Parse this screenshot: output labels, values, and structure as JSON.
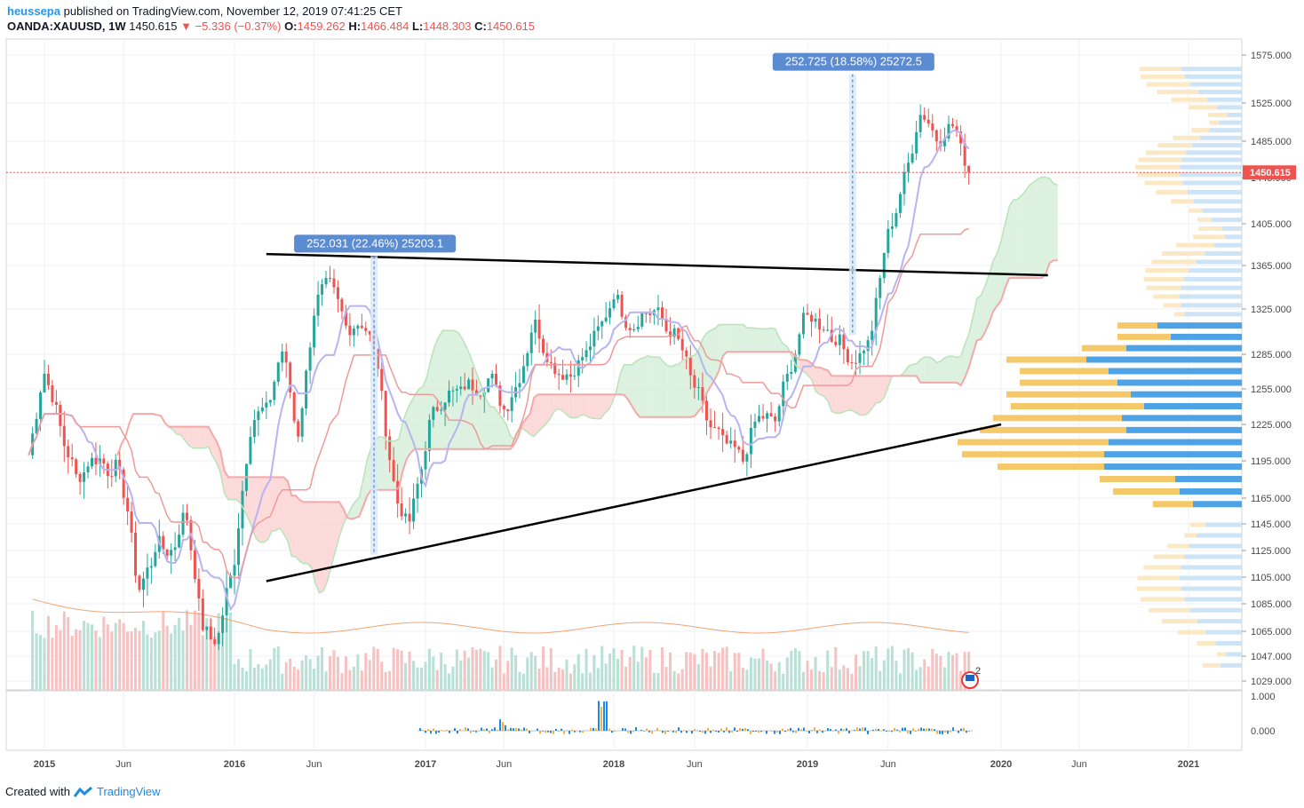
{
  "header": {
    "publisher": "heussepa",
    "published_text": "published on TradingView.com, November 12, 2019 07:41:25 CET",
    "symbol": "OANDA:XAUUSD, 1W",
    "last": "1450.615",
    "change": "▼ −5.336 (−0.37%)",
    "o_label": "O:",
    "o": "1459.262",
    "h_label": "H:",
    "h": "1466.484",
    "l_label": "L:",
    "l": "1448.303",
    "c_label": "C:",
    "c": "1450.615"
  },
  "footer": {
    "created_with": "Created with",
    "brand": "TradingView"
  },
  "colors": {
    "up": "#26a69a",
    "down": "#ef5350",
    "price_line": "#ef5350",
    "base_line": "#ef9a9a",
    "conv_line": "#b7b4f0",
    "cloud_bull": "#d6efd9",
    "cloud_bear": "#fbd3d3",
    "sma": "#f0a575",
    "vp_up": "#4ea3e6",
    "vp_down": "#f5c96a"
  },
  "chart_data": {
    "type": "candlestick",
    "symbol": "OANDA:XAUUSD",
    "interval": "1W",
    "y_axis": {
      "ticks": [
        1575,
        1525,
        1485,
        1445,
        1405,
        1365,
        1325,
        1285,
        1255,
        1225,
        1195,
        1165,
        1145,
        1125,
        1105,
        1085,
        1065,
        1047,
        1029
      ],
      "tick_labels": [
        "1575.000",
        "1525.000",
        "1485.000",
        "1445.000",
        "1405.000",
        "1365.000",
        "1325.000",
        "1285.000",
        "1255.000",
        "1225.000",
        "1195.000",
        "1165.000",
        "1145.000",
        "1125.000",
        "1105.000",
        "1085.000",
        "1065.000",
        "1047.000",
        "1029.000"
      ]
    },
    "x_axis": {
      "labels": [
        "2015",
        "Jun",
        "2016",
        "Jun",
        "2017",
        "Jun",
        "2018",
        "Jun",
        "2019",
        "Jun",
        "2020",
        "Jun",
        "2021"
      ],
      "label_dates": [
        "2015-01",
        "2015-06",
        "2016-01",
        "2016-06",
        "2017-01",
        "2017-06",
        "2018-01",
        "2018-06",
        "2019-01",
        "2019-06",
        "2020-01",
        "2020-06",
        "2021-01"
      ]
    },
    "last_price": 1450.615,
    "last_price_label": "1450.615",
    "price_path": [
      [
        "2014-12",
        1200
      ],
      [
        "2015-01",
        1280
      ],
      [
        "2015-02",
        1220
      ],
      [
        "2015-03",
        1180
      ],
      [
        "2015-04",
        1200
      ],
      [
        "2015-05",
        1195
      ],
      [
        "2015-06",
        1175
      ],
      [
        "2015-07",
        1090
      ],
      [
        "2015-08",
        1130
      ],
      [
        "2015-09",
        1125
      ],
      [
        "2015-10",
        1160
      ],
      [
        "2015-11",
        1060
      ],
      [
        "2015-12",
        1060
      ],
      [
        "2016-01",
        1120
      ],
      [
        "2016-02",
        1235
      ],
      [
        "2016-03",
        1230
      ],
      [
        "2016-04",
        1295
      ],
      [
        "2016-05",
        1210
      ],
      [
        "2016-06",
        1330
      ],
      [
        "2016-07",
        1340
      ],
      [
        "2016-08",
        1310
      ],
      [
        "2016-09",
        1320
      ],
      [
        "2016-10",
        1275
      ],
      [
        "2016-11",
        1175
      ],
      [
        "2016-12",
        1135
      ],
      [
        "2017-01",
        1210
      ],
      [
        "2017-02",
        1255
      ],
      [
        "2017-03",
        1245
      ],
      [
        "2017-04",
        1265
      ],
      [
        "2017-05",
        1265
      ],
      [
        "2017-06",
        1240
      ],
      [
        "2017-07",
        1270
      ],
      [
        "2017-08",
        1320
      ],
      [
        "2017-09",
        1280
      ],
      [
        "2017-10",
        1270
      ],
      [
        "2017-11",
        1280
      ],
      [
        "2017-12",
        1300
      ],
      [
        "2018-01",
        1345
      ],
      [
        "2018-02",
        1315
      ],
      [
        "2018-03",
        1325
      ],
      [
        "2018-04",
        1315
      ],
      [
        "2018-05",
        1295
      ],
      [
        "2018-06",
        1250
      ],
      [
        "2018-07",
        1220
      ],
      [
        "2018-08",
        1200
      ],
      [
        "2018-09",
        1195
      ],
      [
        "2018-10",
        1232
      ],
      [
        "2018-11",
        1222
      ],
      [
        "2018-12",
        1280
      ],
      [
        "2019-01",
        1320
      ],
      [
        "2019-02",
        1315
      ],
      [
        "2019-03",
        1295
      ],
      [
        "2019-04",
        1282
      ],
      [
        "2019-05",
        1300
      ],
      [
        "2019-06",
        1400
      ],
      [
        "2019-07",
        1440
      ],
      [
        "2019-08",
        1525
      ],
      [
        "2019-09",
        1490
      ],
      [
        "2019-10",
        1505
      ],
      [
        "2019-11",
        1450.615
      ]
    ],
    "volume_profile": [
      {
        "price": 1310,
        "up": 95,
        "down": 45
      },
      {
        "price": 1300,
        "up": 80,
        "down": 60
      },
      {
        "price": 1290,
        "up": 130,
        "down": 50
      },
      {
        "price": 1280,
        "up": 175,
        "down": 90
      },
      {
        "price": 1270,
        "up": 150,
        "down": 100
      },
      {
        "price": 1260,
        "up": 140,
        "down": 110
      },
      {
        "price": 1250,
        "up": 125,
        "down": 140
      },
      {
        "price": 1240,
        "up": 110,
        "down": 150
      },
      {
        "price": 1230,
        "up": 135,
        "down": 145
      },
      {
        "price": 1220,
        "up": 130,
        "down": 165
      },
      {
        "price": 1210,
        "up": 150,
        "down": 170
      },
      {
        "price": 1200,
        "up": 155,
        "down": 160
      },
      {
        "price": 1190,
        "up": 155,
        "down": 120
      },
      {
        "price": 1180,
        "up": 75,
        "down": 85
      },
      {
        "price": 1170,
        "up": 70,
        "down": 75
      },
      {
        "price": 1160,
        "up": 55,
        "down": 45
      }
    ],
    "trendlines": [
      {
        "from": [
          "2016-03",
          1376
        ],
        "to": [
          "2020-04",
          1356
        ]
      },
      {
        "from": [
          "2016-03",
          1102
        ],
        "to": [
          "2020-01",
          1225
        ]
      }
    ],
    "measurements": [
      {
        "text": "252.031 (22.46%) 25203.1",
        "from": [
          "2016-12",
          1122
        ],
        "to": [
          "2016-12",
          1374
        ]
      },
      {
        "text": "252.725 (18.58%) 25272.5",
        "from": [
          "2019-06",
          1302
        ],
        "to": [
          "2019-06",
          1555
        ]
      }
    ],
    "oscillator": {
      "tick_labels": [
        "1.000",
        "0.000"
      ]
    },
    "annotation_badge": "2"
  }
}
